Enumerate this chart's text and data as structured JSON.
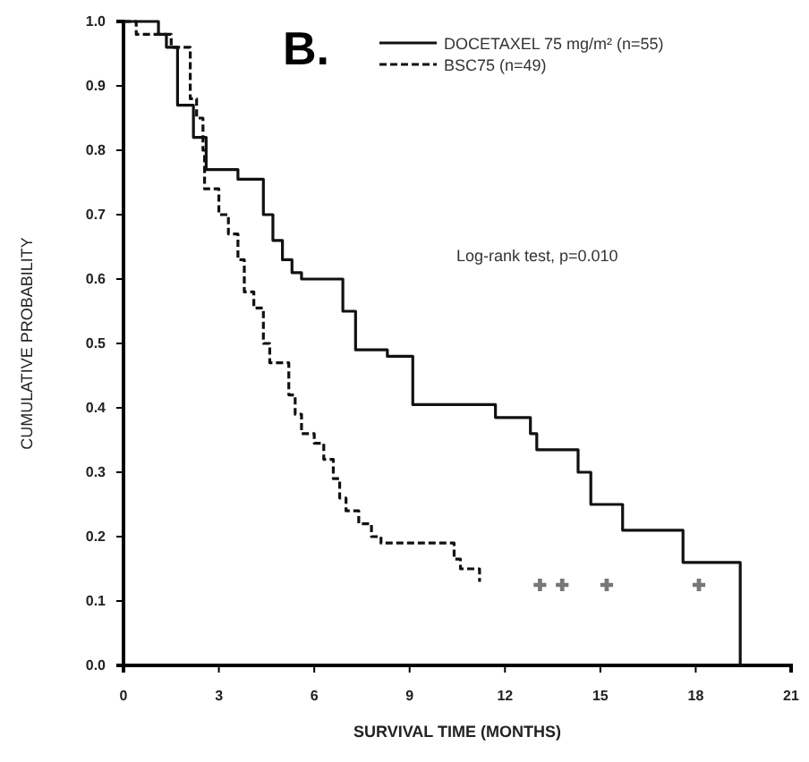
{
  "chart_data": {
    "type": "step",
    "xlabel": "SURVIVAL TIME (MONTHS)",
    "ylabel": "CUMULATIVE PROBABILITY",
    "xlim": [
      0,
      21
    ],
    "xticks": [
      0,
      3,
      6,
      9,
      12,
      15,
      18,
      21
    ],
    "ylim": [
      0,
      1
    ],
    "yticks": [
      {
        "value": 0,
        "label": "0.0"
      },
      {
        "value": 0.1,
        "label": "0.1"
      },
      {
        "value": 0.2,
        "label": "0.2"
      },
      {
        "value": 0.3,
        "label": "0.3"
      },
      {
        "value": 0.4,
        "label": "0.4"
      },
      {
        "value": 0.5,
        "label": "0.5"
      },
      {
        "value": 0.6,
        "label": "0.6"
      },
      {
        "value": 0.7,
        "label": "0.7"
      },
      {
        "value": 0.8,
        "label": "0.8"
      },
      {
        "value": 0.9,
        "label": "0.9"
      },
      {
        "value": 1,
        "label": "1.0"
      }
    ],
    "grid": false,
    "legend": "top right",
    "marker": "none",
    "annotations": [
      "B.",
      "Log-rank test, p=0.010"
    ],
    "series": [
      {
        "name": "DOCETAXEL 75 mg/m² (n=55)",
        "color": "#111111",
        "line_style": "solid",
        "x": [
          0,
          1.1,
          1.35,
          1.7,
          2.2,
          2.6,
          3.6,
          4.4,
          4.7,
          5.0,
          5.3,
          5.6,
          6.9,
          7.3,
          7.4,
          8.3,
          9.1,
          11.7,
          12.8,
          13.0,
          14.3,
          14.7,
          15.7,
          17.6,
          19.4,
          19.5
        ],
        "values": [
          1,
          0.98,
          0.96,
          0.87,
          0.82,
          0.77,
          0.755,
          0.7,
          0.66,
          0.63,
          0.61,
          0.6,
          0.55,
          0.49,
          0.49,
          0.48,
          0.405,
          0.385,
          0.36,
          0.335,
          0.3,
          0.25,
          0.21,
          0.16,
          0,
          0
        ]
      },
      {
        "name": "BSC75 (n=49)",
        "color": "#111111",
        "line_style": "dashed",
        "x": [
          0,
          0.4,
          1.5,
          2.1,
          2.3,
          2.5,
          2.55,
          3.0,
          3.3,
          3.6,
          3.8,
          4.1,
          4.4,
          4.6,
          5.2,
          5.4,
          5.6,
          6.0,
          6.3,
          6.6,
          6.8,
          7.0,
          7.4,
          7.8,
          8.1,
          10.4,
          10.6,
          11.2
        ],
        "values": [
          1,
          0.98,
          0.96,
          0.88,
          0.85,
          0.8,
          0.74,
          0.7,
          0.67,
          0.63,
          0.58,
          0.555,
          0.5,
          0.47,
          0.42,
          0.39,
          0.36,
          0.345,
          0.32,
          0.29,
          0.26,
          0.24,
          0.22,
          0.2,
          0.19,
          0.165,
          0.15,
          0.13
        ]
      },
      {
        "type": "scatter",
        "color": "#777777",
        "marker": "cross",
        "x": [
          13.1,
          13.8,
          15.2,
          18.1
        ],
        "values": [
          0.125,
          0.125,
          0.125,
          0.125
        ]
      }
    ]
  }
}
